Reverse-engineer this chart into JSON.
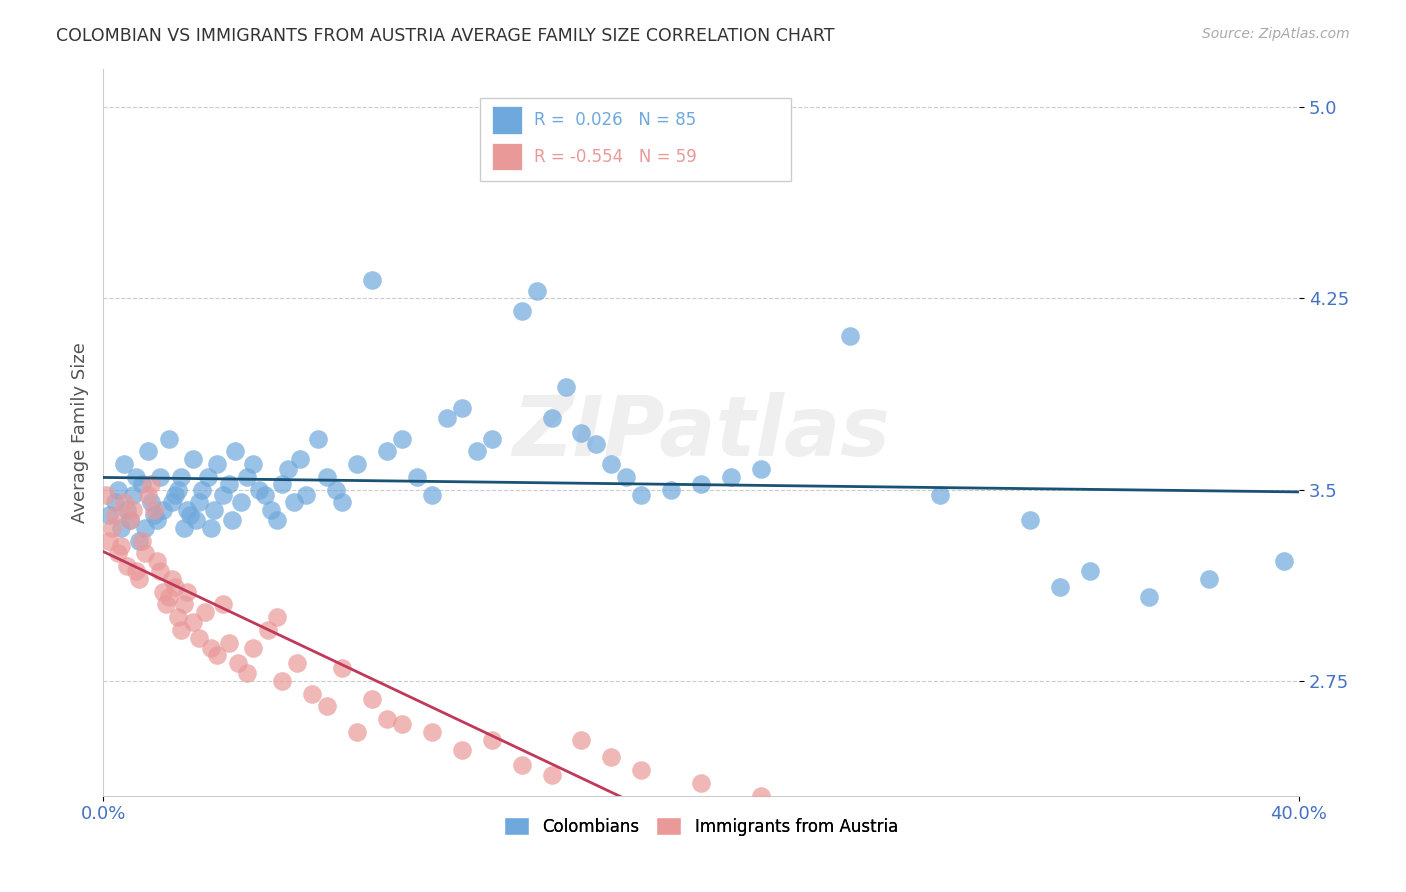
{
  "title": "COLOMBIAN VS IMMIGRANTS FROM AUSTRIA AVERAGE FAMILY SIZE CORRELATION CHART",
  "source": "Source: ZipAtlas.com",
  "ylabel": "Average Family Size",
  "xlabel_ticks": [
    "0.0%",
    "40.0%"
  ],
  "yticks": [
    2.75,
    3.5,
    4.25,
    5.0
  ],
  "xlim": [
    0.0,
    0.4
  ],
  "ylim": [
    2.3,
    5.15
  ],
  "legend_colombians": "Colombians",
  "legend_austria": "Immigrants from Austria",
  "r_colombians": "0.026",
  "n_colombians": "85",
  "r_austria": "-0.554",
  "n_austria": "59",
  "blue_color": "#6fa8dc",
  "pink_color": "#ea9999",
  "line_blue": "#1a5276",
  "line_pink": "#c0395a",
  "watermark": "ZIPatlas",
  "title_color": "#333333",
  "axis_label_color": "#555555",
  "tick_color": "#4472c4",
  "colombians_x": [
    0.002,
    0.004,
    0.005,
    0.006,
    0.007,
    0.008,
    0.009,
    0.01,
    0.011,
    0.012,
    0.013,
    0.014,
    0.015,
    0.016,
    0.017,
    0.018,
    0.019,
    0.02,
    0.022,
    0.023,
    0.024,
    0.025,
    0.026,
    0.027,
    0.028,
    0.029,
    0.03,
    0.031,
    0.032,
    0.033,
    0.035,
    0.036,
    0.037,
    0.038,
    0.04,
    0.042,
    0.043,
    0.044,
    0.046,
    0.048,
    0.05,
    0.052,
    0.054,
    0.056,
    0.058,
    0.06,
    0.062,
    0.064,
    0.066,
    0.068,
    0.072,
    0.075,
    0.078,
    0.08,
    0.085,
    0.09,
    0.095,
    0.1,
    0.105,
    0.11,
    0.115,
    0.12,
    0.125,
    0.13,
    0.14,
    0.145,
    0.15,
    0.155,
    0.16,
    0.165,
    0.17,
    0.175,
    0.18,
    0.19,
    0.2,
    0.21,
    0.22,
    0.25,
    0.28,
    0.31,
    0.32,
    0.33,
    0.35,
    0.37,
    0.395
  ],
  "colombians_y": [
    3.4,
    3.45,
    3.5,
    3.35,
    3.6,
    3.42,
    3.38,
    3.48,
    3.55,
    3.3,
    3.52,
    3.35,
    3.65,
    3.45,
    3.4,
    3.38,
    3.55,
    3.42,
    3.7,
    3.45,
    3.48,
    3.5,
    3.55,
    3.35,
    3.42,
    3.4,
    3.62,
    3.38,
    3.45,
    3.5,
    3.55,
    3.35,
    3.42,
    3.6,
    3.48,
    3.52,
    3.38,
    3.65,
    3.45,
    3.55,
    3.6,
    3.5,
    3.48,
    3.42,
    3.38,
    3.52,
    3.58,
    3.45,
    3.62,
    3.48,
    3.7,
    3.55,
    3.5,
    3.45,
    3.6,
    4.32,
    3.65,
    3.7,
    3.55,
    3.48,
    3.78,
    3.82,
    3.65,
    3.7,
    4.2,
    4.28,
    3.78,
    3.9,
    3.72,
    3.68,
    3.6,
    3.55,
    3.48,
    3.5,
    3.52,
    3.55,
    3.58,
    4.1,
    3.48,
    3.38,
    3.12,
    3.18,
    3.08,
    3.15,
    3.22
  ],
  "austria_x": [
    0.001,
    0.002,
    0.003,
    0.004,
    0.005,
    0.006,
    0.007,
    0.008,
    0.009,
    0.01,
    0.011,
    0.012,
    0.013,
    0.014,
    0.015,
    0.016,
    0.017,
    0.018,
    0.019,
    0.02,
    0.021,
    0.022,
    0.023,
    0.024,
    0.025,
    0.026,
    0.027,
    0.028,
    0.03,
    0.032,
    0.034,
    0.036,
    0.038,
    0.04,
    0.042,
    0.045,
    0.048,
    0.05,
    0.055,
    0.058,
    0.06,
    0.065,
    0.07,
    0.075,
    0.08,
    0.085,
    0.09,
    0.095,
    0.1,
    0.11,
    0.12,
    0.13,
    0.14,
    0.15,
    0.16,
    0.17,
    0.18,
    0.2,
    0.22
  ],
  "austria_y": [
    3.48,
    3.3,
    3.35,
    3.4,
    3.25,
    3.28,
    3.45,
    3.2,
    3.38,
    3.42,
    3.18,
    3.15,
    3.3,
    3.25,
    3.48,
    3.52,
    3.42,
    3.22,
    3.18,
    3.1,
    3.05,
    3.08,
    3.15,
    3.12,
    3.0,
    2.95,
    3.05,
    3.1,
    2.98,
    2.92,
    3.02,
    2.88,
    2.85,
    3.05,
    2.9,
    2.82,
    2.78,
    2.88,
    2.95,
    3.0,
    2.75,
    2.82,
    2.7,
    2.65,
    2.8,
    2.55,
    2.68,
    2.6,
    2.58,
    2.55,
    2.48,
    2.52,
    2.42,
    2.38,
    2.52,
    2.45,
    2.4,
    2.35,
    2.3
  ],
  "grid_color": "#cccccc",
  "background_color": "#ffffff"
}
